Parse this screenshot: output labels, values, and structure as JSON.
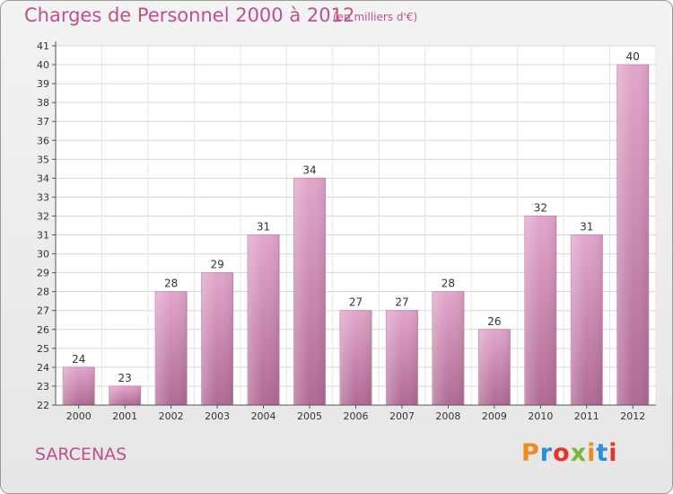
{
  "header": {
    "title": "Charges de Personnel 2000 à 2012",
    "subtitle": "(en milliers d'€)"
  },
  "footer": {
    "commune": "SARCENAS",
    "logo_text": "Proxiti",
    "logo_colors": [
      "#f08a1c",
      "#2b8fd6",
      "#e8332a",
      "#7bb83a",
      "#f08a1c",
      "#2b8fd6",
      "#e8332a"
    ]
  },
  "colors": {
    "accent": "#c0508a",
    "bar": "#d98cb8",
    "bar_shade": "#b0608f"
  },
  "chart_data": {
    "type": "bar",
    "categories": [
      "2000",
      "2001",
      "2002",
      "2003",
      "2004",
      "2005",
      "2006",
      "2007",
      "2008",
      "2009",
      "2010",
      "2011",
      "2012"
    ],
    "values": [
      24,
      23,
      28,
      29,
      31,
      34,
      27,
      27,
      28,
      26,
      32,
      31,
      40
    ],
    "title": "Charges de Personnel 2000 à 2012",
    "subtitle": "(en milliers d'€)",
    "xlabel": "",
    "ylabel": "",
    "ylim": [
      22,
      41
    ],
    "yticks": [
      22,
      23,
      24,
      25,
      26,
      27,
      28,
      29,
      30,
      31,
      32,
      33,
      34,
      35,
      36,
      37,
      38,
      39,
      40,
      41
    ],
    "grid": true,
    "legend": "none"
  }
}
